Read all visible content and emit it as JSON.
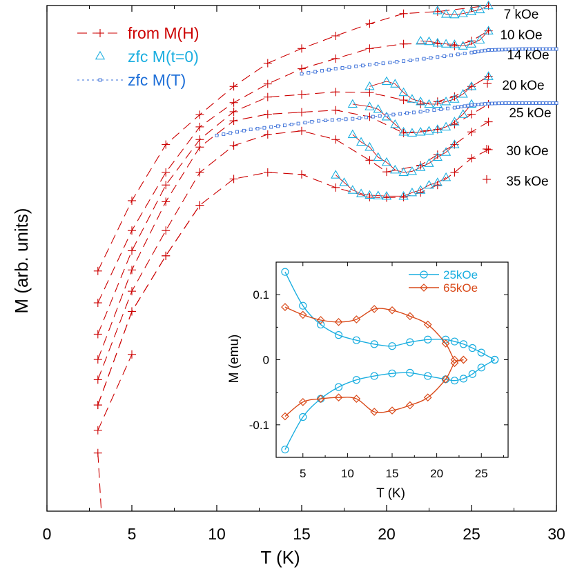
{
  "chart_data": [
    {
      "type": "line",
      "xlabel": "T (K)",
      "ylabel": "M (arb. units)",
      "xlim": [
        0,
        30
      ],
      "ylim": [
        0,
        100
      ],
      "y_ticks_labeled": false,
      "xticks": [
        "0",
        "5",
        "10",
        "15",
        "20",
        "25",
        "30"
      ],
      "legend": {
        "placement": "top-left",
        "entries": [
          {
            "name": "from M(H)",
            "color": "#cc0000",
            "marker": "plus-dashed"
          },
          {
            "name": "zfc M(t=0)",
            "color": "#1aaee0",
            "marker": "triangle"
          },
          {
            "name": "zfc M(T)",
            "color": "#3a6fd8",
            "marker": "small-square-dotted"
          }
        ]
      },
      "series": [
        {
          "name": "7 kOe",
          "kind": "from M(H)",
          "x": [
            3,
            5,
            7,
            9,
            11,
            13,
            15,
            17,
            19,
            21,
            23,
            26
          ],
          "y": [
            47.5,
            61.4,
            72.5,
            78.4,
            84.0,
            88.6,
            91.5,
            94.0,
            96.4,
            98.4,
            98.8,
            100.0
          ],
          "tri_x": [
            23,
            23.5,
            24,
            24.5,
            25,
            25.5,
            26
          ],
          "tri_y": [
            99.0,
            98.3,
            98.2,
            98.4,
            98.8,
            99.2,
            100.0
          ]
        },
        {
          "name": "10 kOe",
          "kind": "from M(H)",
          "x": [
            3,
            5,
            7,
            9,
            11,
            13,
            15,
            17,
            19,
            21,
            23,
            24,
            25,
            26
          ],
          "y": [
            41.2,
            55.5,
            67.0,
            76.0,
            80.8,
            84.5,
            87.5,
            89.5,
            91.5,
            92.4,
            92.5,
            92.0,
            93.0,
            95.0
          ],
          "tri_x": [
            22,
            22.5,
            23,
            23.5,
            24,
            24.5,
            25,
            25.5,
            26
          ],
          "tri_y": [
            93.0,
            92.9,
            92.6,
            92.4,
            92.3,
            92.0,
            92.4,
            93.2,
            95.0
          ]
        },
        {
          "name": "20 kOe",
          "kind": "from M(H)",
          "x": [
            3,
            5,
            7,
            9,
            11,
            13,
            15,
            17,
            19,
            21,
            22,
            23,
            24,
            25,
            26
          ],
          "y": [
            35.0,
            51.5,
            64.5,
            73.5,
            79.0,
            81.9,
            82.4,
            82.9,
            82.8,
            81.3,
            80.5,
            81.0,
            82.0,
            84.0,
            86.0
          ],
          "tri_x": [
            19,
            20,
            20.5,
            21,
            21.5,
            22,
            22.5,
            23,
            23.5,
            24,
            24.5,
            25,
            26
          ],
          "tri_y": [
            84.0,
            85.0,
            84.5,
            82.8,
            81.5,
            81.0,
            80.5,
            80.5,
            81.0,
            81.5,
            82.5,
            84.0,
            86.0
          ]
        },
        {
          "name": "25 kOe",
          "kind": "from M(H)",
          "x": [
            3,
            5,
            7,
            9,
            11,
            13,
            15,
            17,
            19,
            21,
            23,
            24,
            25,
            26
          ],
          "y": [
            30.0,
            47.7,
            61.2,
            72.0,
            77.2,
            78.5,
            78.9,
            79.3,
            78.0,
            74.8,
            75.5,
            76.5,
            78.5,
            80.5
          ],
          "tri_x": [
            18,
            19,
            19.5,
            20,
            20.5,
            21,
            21.5,
            22,
            22.5,
            23,
            23.5,
            24,
            24.5,
            25
          ],
          "tri_y": [
            80.5,
            80.0,
            79.5,
            78.0,
            76.5,
            75.0,
            74.8,
            75.0,
            75.2,
            75.5,
            76.0,
            77.0,
            78.5,
            80.5
          ]
        },
        {
          "name": "30 kOe",
          "kind": "from M(H)",
          "x": [
            3,
            5,
            7,
            9,
            11,
            13,
            15,
            17,
            19,
            20,
            22,
            23,
            24,
            25,
            26
          ],
          "y": [
            26.0,
            43.5,
            55.5,
            67.0,
            72.3,
            74.5,
            75.2,
            73.5,
            69.4,
            67.1,
            68.4,
            70.5,
            72.5,
            75.0,
            77.0
          ],
          "tri_x": [
            18,
            18.5,
            19,
            19.5,
            20,
            20.5,
            21,
            21.5,
            22,
            22.5,
            23,
            23.5,
            24
          ],
          "tri_y": [
            74.5,
            73.0,
            72.0,
            70.0,
            69.0,
            67.5,
            67.0,
            67.2,
            68.0,
            68.8,
            70.0,
            71.0,
            72.5
          ]
        },
        {
          "name": "35 kOe",
          "kind": "from M(H)",
          "x": [
            3,
            5,
            7,
            9,
            11,
            13,
            15,
            17,
            19,
            20,
            21,
            22,
            23,
            24,
            25,
            26
          ],
          "y": [
            21.0,
            39.5,
            50.5,
            60.5,
            65.7,
            67.0,
            66.6,
            64.0,
            62.1,
            62.0,
            62.1,
            63.0,
            64.5,
            67.0,
            69.8,
            71.5
          ],
          "tri_x": [
            17,
            17.5,
            18,
            18.5,
            19,
            19.5,
            20,
            21,
            21.5,
            22,
            22.5,
            23,
            23.5
          ],
          "tri_y": [
            66.5,
            65.0,
            63.5,
            62.8,
            62.5,
            62.4,
            62.3,
            62.3,
            63.0,
            63.5,
            64.5,
            65.0,
            66.0
          ]
        },
        {
          "name": "14 kOe",
          "kind": "zfc M(T)",
          "x": [
            15,
            17,
            19,
            21,
            23,
            25,
            26,
            27,
            28,
            29,
            30
          ],
          "y": [
            86.5,
            87.5,
            88.3,
            89.0,
            89.8,
            90.7,
            91.2,
            91.3,
            91.4,
            91.4,
            91.4
          ]
        },
        {
          "name": "25 kOe (zfc)",
          "kind": "zfc M(T)",
          "x": [
            10,
            12,
            14,
            16,
            18,
            20,
            22,
            24,
            25,
            26,
            27,
            28,
            29,
            30
          ],
          "y": [
            74.3,
            75.5,
            76.3,
            77.2,
            77.6,
            78.3,
            79.0,
            79.8,
            80.3,
            80.6,
            80.7,
            80.7,
            80.7,
            80.7
          ]
        }
      ],
      "annotations": [
        "7 kOe",
        "10 kOe",
        "14 kOe",
        "20 kOe",
        "25 kOe",
        "30 kOe",
        "35 kOe"
      ],
      "lower_segments": [
        {
          "x": [
            3,
            5,
            7,
            9
          ],
          "y": [
            21.0,
            39.5,
            50.5,
            60.5
          ]
        },
        {
          "x": [
            3.0,
            3.2
          ],
          "y": [
            11.5,
            0.0
          ]
        },
        {
          "x": [
            3,
            5
          ],
          "y": [
            16.0,
            31.0
          ]
        }
      ]
    },
    {
      "type": "line",
      "xlabel": "T (K)",
      "ylabel": "M (emu)",
      "xlim": [
        2,
        28
      ],
      "ylim": [
        -0.15,
        0.15
      ],
      "xticks": [
        "5",
        "10",
        "15",
        "20",
        "25"
      ],
      "yticks": [
        "-0.1",
        "0",
        "0.1"
      ],
      "legend": {
        "placement": "top-right"
      },
      "series": [
        {
          "name": "25kOe",
          "color": "#1aaee0",
          "marker": "circle",
          "x": [
            3,
            5,
            7,
            9,
            11,
            13,
            15,
            17,
            19,
            21,
            22,
            23,
            24,
            25,
            26.5
          ],
          "y_upper": [
            0.135,
            0.083,
            0.054,
            0.038,
            0.03,
            0.024,
            0.021,
            0.027,
            0.031,
            0.031,
            0.028,
            0.024,
            0.018,
            0.011,
            0.0
          ],
          "y_lower": [
            -0.138,
            -0.088,
            -0.06,
            -0.042,
            -0.031,
            -0.025,
            -0.021,
            -0.02,
            -0.025,
            -0.03,
            -0.032,
            -0.029,
            -0.022,
            -0.012,
            0.0
          ]
        },
        {
          "name": "65kOe",
          "color": "#d94a1a",
          "marker": "diamond",
          "x": [
            3,
            5,
            7,
            9,
            11,
            13,
            15,
            17,
            19,
            21,
            22,
            23
          ],
          "y_upper": [
            0.081,
            0.069,
            0.061,
            0.058,
            0.062,
            0.078,
            0.076,
            0.067,
            0.054,
            0.025,
            0.0,
            0.0
          ],
          "y_lower": [
            -0.087,
            -0.065,
            -0.06,
            -0.058,
            -0.06,
            -0.08,
            -0.078,
            -0.07,
            -0.058,
            -0.03,
            -0.005,
            0.0
          ]
        }
      ]
    }
  ]
}
